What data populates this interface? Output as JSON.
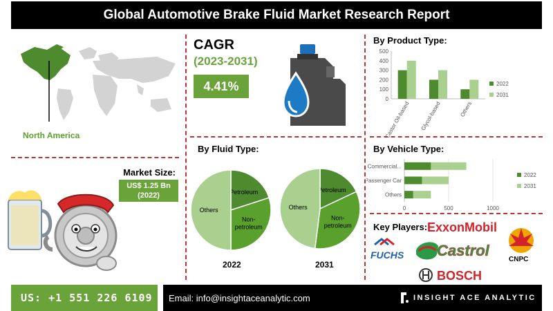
{
  "header": {
    "title": "Global Automotive Brake Fluid Market Research Report"
  },
  "region": {
    "label": "North America"
  },
  "cagr": {
    "title": "CAGR",
    "period": "(2023-2031)",
    "value": "4.41%"
  },
  "market_size": {
    "title": "Market Size:",
    "value": "US$ 1.25 Bn",
    "year": "(2022)"
  },
  "fluid_type": {
    "title": "By Fluid Type:",
    "pies": [
      {
        "year": "2022",
        "slices": [
          {
            "label": "Petroleum",
            "value": 20
          },
          {
            "label": "Non-petroleum",
            "value": 30
          },
          {
            "label": "Others",
            "value": 50
          }
        ]
      },
      {
        "year": "2031",
        "slices": [
          {
            "label": "Petroleum",
            "value": 18
          },
          {
            "label": "Non-petroleum",
            "value": 34
          },
          {
            "label": "Others",
            "value": 48
          }
        ]
      }
    ]
  },
  "product_type": {
    "title": "By Product Type:"
  },
  "vehicle_type": {
    "title": "By Vehicle Type:"
  },
  "chart_data": [
    {
      "type": "bar",
      "title": "By Product Type:",
      "categories": [
        "Castor Oil-based",
        "Glycol-based",
        "Others"
      ],
      "series": [
        {
          "name": "2022",
          "values": [
            300,
            200,
            100
          ]
        },
        {
          "name": "2031",
          "values": [
            400,
            300,
            200
          ]
        }
      ],
      "ylim": [
        0,
        500
      ],
      "yticks": [
        0,
        100,
        200,
        300,
        400,
        500
      ],
      "colors": [
        "#4e8a2e",
        "#a9d08e"
      ],
      "legend": "right"
    },
    {
      "type": "bar",
      "orientation": "horizontal",
      "title": "By Vehicle Type:",
      "categories": [
        "Commercial...",
        "Passenger Car",
        "Others"
      ],
      "series": [
        {
          "name": "2022",
          "values": [
            300,
            200,
            100
          ]
        },
        {
          "name": "2031",
          "values": [
            400,
            300,
            200
          ]
        }
      ],
      "stacked": true,
      "xlim": [
        0,
        1000
      ],
      "xticks": [
        0,
        500,
        1000
      ],
      "colors": [
        "#4e8a2e",
        "#a9d08e"
      ],
      "legend": "right"
    },
    {
      "type": "pie",
      "title": "By Fluid Type:",
      "label": "2022",
      "slices": [
        {
          "label": "Petroleum",
          "value": 20
        },
        {
          "label": "Non-petroleum",
          "value": 30
        },
        {
          "label": "Others",
          "value": 50
        }
      ]
    },
    {
      "type": "pie",
      "title": "By Fluid Type:",
      "label": "2031",
      "slices": [
        {
          "label": "Petroleum",
          "value": 18
        },
        {
          "label": "Non-petroleum",
          "value": 34
        },
        {
          "label": "Others",
          "value": 48
        }
      ]
    }
  ],
  "key_players": {
    "title": "Key Players:",
    "names": [
      "ExxonMobil",
      "FUCHS",
      "Castrol",
      "CNPC",
      "BOSCH"
    ]
  },
  "footer": {
    "phone": "US: +1 551 226 6109",
    "email": "Email: info@insightaceanalytic.com",
    "brand": "INSIGHT ACE ANALYTIC"
  },
  "colors": {
    "accent": "#6aa33a",
    "dark_green": "#4e8a2e",
    "light_green": "#a9d08e",
    "divider": "#b33333"
  }
}
